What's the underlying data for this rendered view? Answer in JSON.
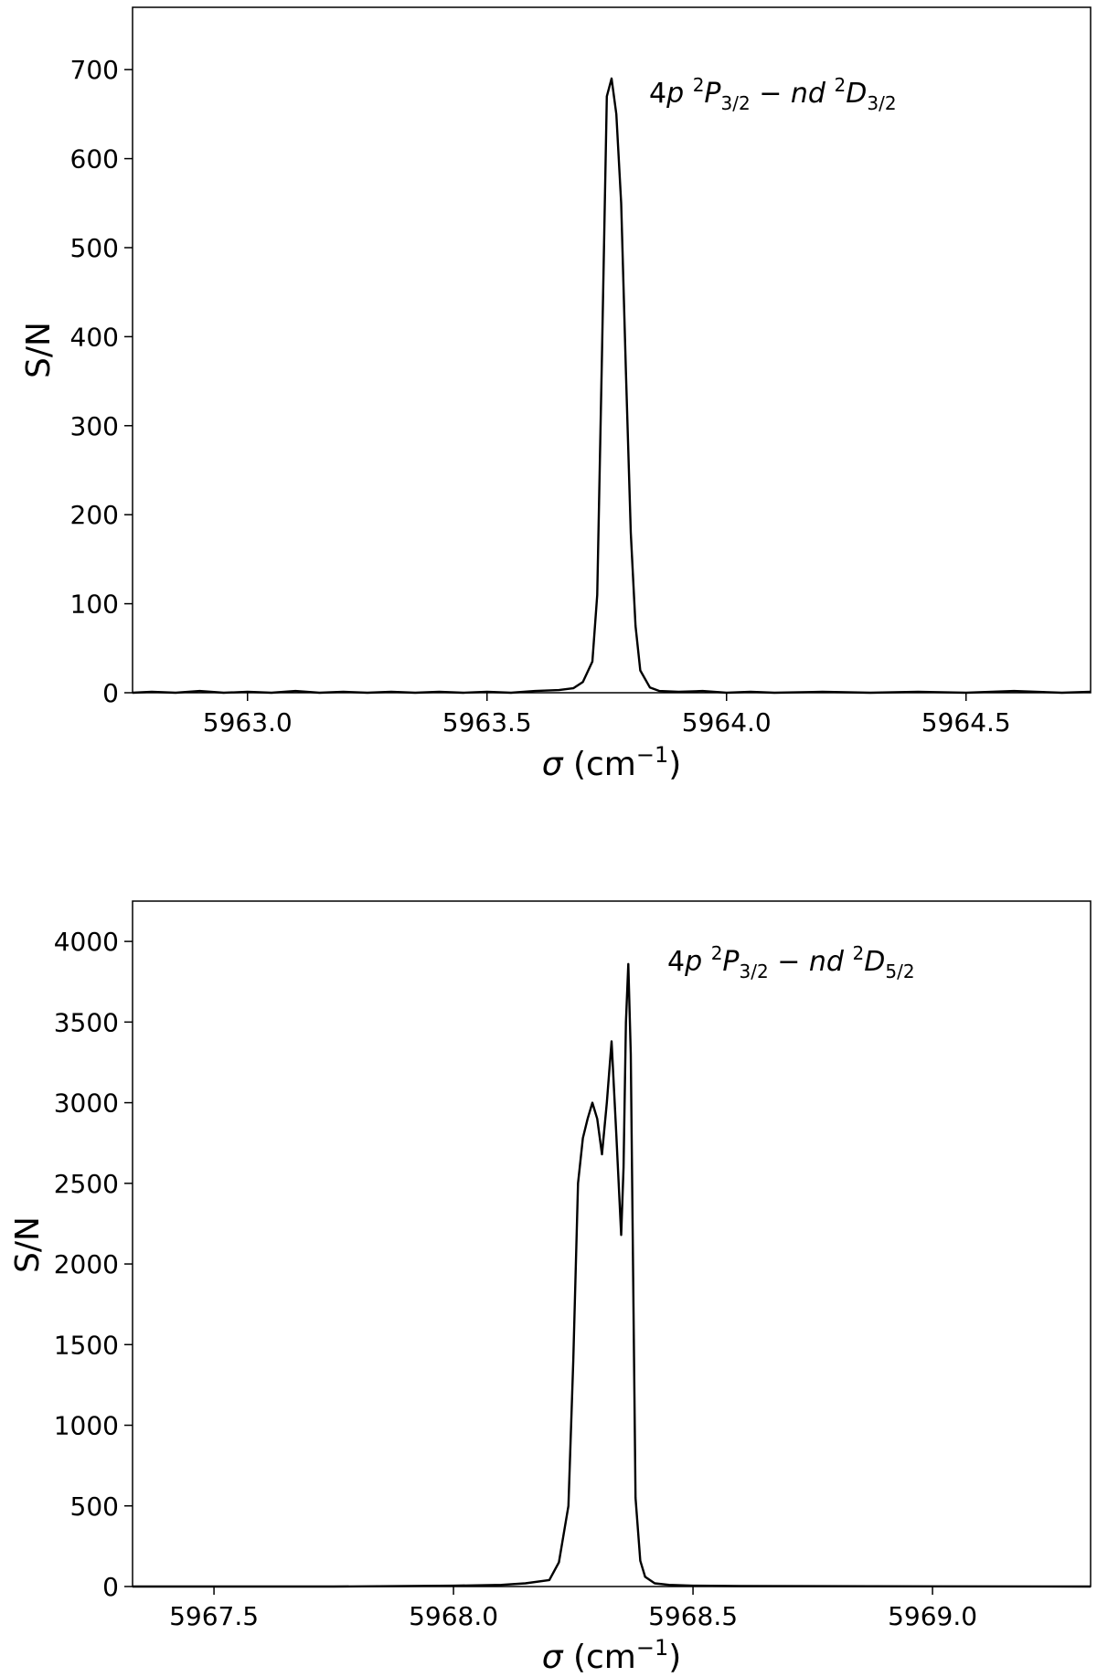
{
  "chart_data": [
    {
      "type": "line",
      "xlabel_symbol": "σ",
      "xlabel_unit": "(cm",
      "xlabel_exp": "−1",
      "xlabel_close": ")",
      "ylabel": "S/N",
      "xlim": [
        5962.76,
        5964.76
      ],
      "ylim": [
        0,
        770
      ],
      "xticks": [
        5963.0,
        5963.5,
        5964.0,
        5964.5
      ],
      "xtick_labels": [
        "5963.0",
        "5963.5",
        "5964.0",
        "5964.5"
      ],
      "yticks": [
        0,
        100,
        200,
        300,
        400,
        500,
        600,
        700
      ],
      "ytick_labels": [
        "0",
        "100",
        "200",
        "300",
        "400",
        "500",
        "600",
        "700"
      ],
      "annotation": {
        "prefix": "4",
        "p": "p",
        "sup1": "2",
        "P": "P",
        "sub1": "3/2",
        "dash": " − ",
        "nd": "nd",
        "sup2": "2",
        "D": "D",
        "sub2": "3/2"
      },
      "series": [
        {
          "x": [
            5962.76,
            5962.8,
            5962.85,
            5962.9,
            5962.95,
            5963.0,
            5963.05,
            5963.1,
            5963.15,
            5963.2,
            5963.25,
            5963.3,
            5963.35,
            5963.4,
            5963.45,
            5963.5,
            5963.55,
            5963.6,
            5963.65,
            5963.68,
            5963.7,
            5963.72,
            5963.73,
            5963.74,
            5963.75,
            5963.76,
            5963.77,
            5963.78,
            5963.79,
            5963.8,
            5963.81,
            5963.82,
            5963.84,
            5963.86,
            5963.9,
            5963.95,
            5964.0,
            5964.05,
            5964.1,
            5964.2,
            5964.3,
            5964.4,
            5964.5,
            5964.6,
            5964.7,
            5964.76
          ],
          "y": [
            0,
            1,
            0,
            2,
            0,
            1,
            0,
            2,
            0,
            1,
            0,
            1,
            0,
            1,
            0,
            1,
            0,
            2,
            3,
            5,
            12,
            35,
            110,
            380,
            670,
            690,
            650,
            550,
            360,
            180,
            75,
            25,
            6,
            2,
            1,
            2,
            0,
            1,
            0,
            1,
            0,
            1,
            0,
            2,
            0,
            1
          ]
        }
      ]
    },
    {
      "type": "line",
      "xlabel_symbol": "σ",
      "xlabel_unit": "(cm",
      "xlabel_exp": "−1",
      "xlabel_close": ")",
      "ylabel": "S/N",
      "xlim": [
        5967.33,
        5969.33
      ],
      "ylim": [
        0,
        4250
      ],
      "xticks": [
        5967.5,
        5968.0,
        5968.5,
        5969.0
      ],
      "xtick_labels": [
        "5967.5",
        "5968.0",
        "5968.5",
        "5969.0"
      ],
      "yticks": [
        0,
        500,
        1000,
        1500,
        2000,
        2500,
        3000,
        3500,
        4000
      ],
      "ytick_labels": [
        "0",
        "500",
        "1000",
        "1500",
        "2000",
        "2500",
        "3000",
        "3500",
        "4000"
      ],
      "annotation": {
        "prefix": "4",
        "p": "p",
        "sup1": "2",
        "P": "P",
        "sub1": "3/2",
        "dash": " − ",
        "nd": "nd",
        "sup2": "2",
        "D": "D",
        "sub2": "5/2"
      },
      "series": [
        {
          "x": [
            5967.33,
            5967.5,
            5967.75,
            5968.0,
            5968.1,
            5968.15,
            5968.2,
            5968.22,
            5968.24,
            5968.25,
            5968.26,
            5968.27,
            5968.28,
            5968.29,
            5968.3,
            5968.31,
            5968.32,
            5968.33,
            5968.34,
            5968.35,
            5968.355,
            5968.36,
            5968.365,
            5968.37,
            5968.38,
            5968.39,
            5968.4,
            5968.42,
            5968.45,
            5968.5,
            5968.6,
            5968.75,
            5969.0,
            5969.33
          ],
          "y": [
            0,
            0,
            0,
            5,
            10,
            20,
            40,
            150,
            500,
            1400,
            2500,
            2780,
            2900,
            3000,
            2900,
            2680,
            3000,
            3380,
            2800,
            2180,
            2600,
            3500,
            3860,
            3300,
            550,
            160,
            60,
            20,
            10,
            5,
            3,
            2,
            1,
            0
          ]
        }
      ]
    }
  ]
}
